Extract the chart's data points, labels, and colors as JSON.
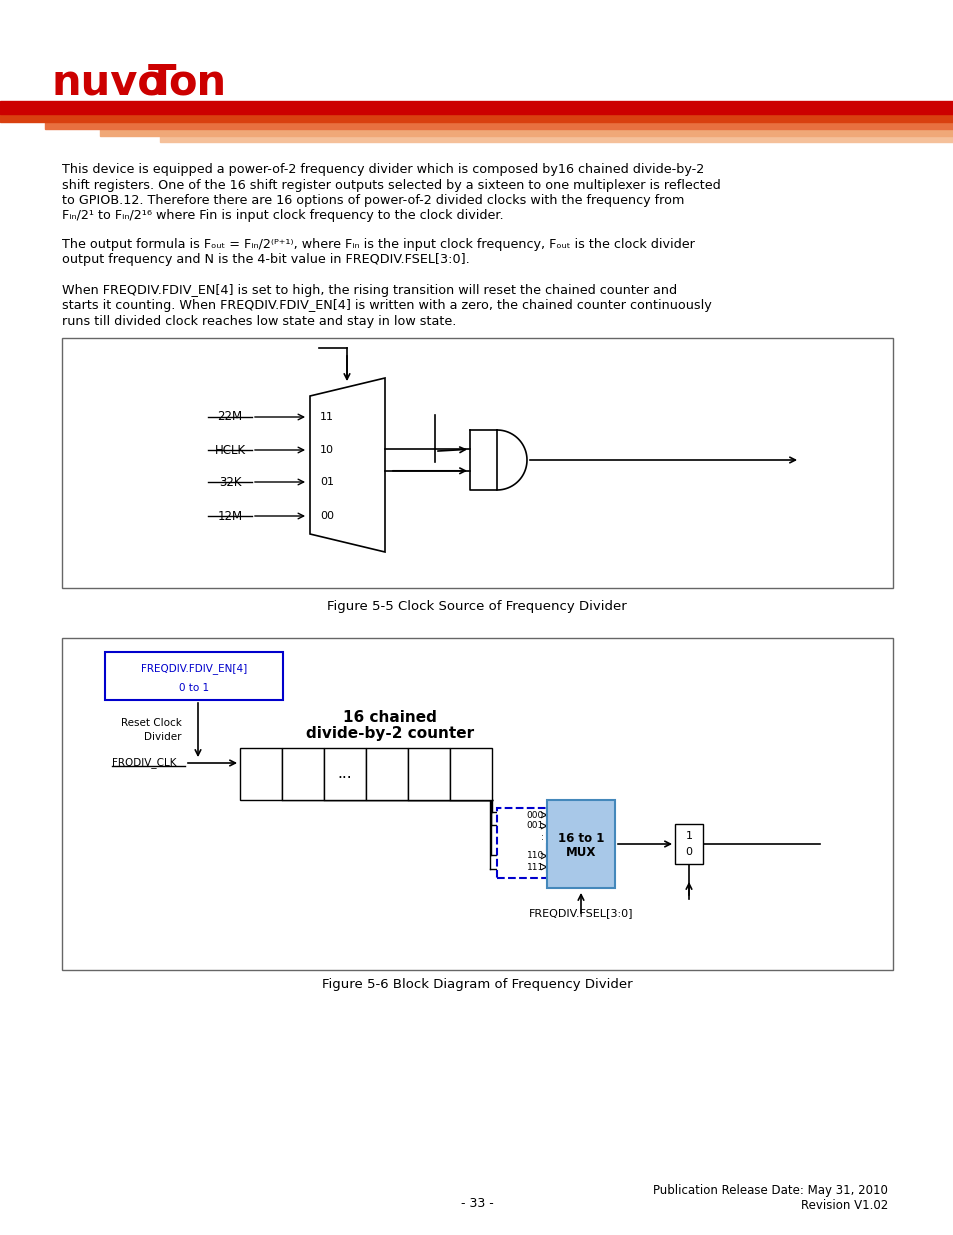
{
  "page_width": 9.54,
  "page_height": 12.35,
  "bg": "#ffffff",
  "logo_color": "#cc0000",
  "body_font": "DejaVu Sans",
  "body_fontsize": 9.0,
  "para1": [
    "This device is equipped a power-of-2 frequency divider which is composed by16 chained divide-by-2",
    "shift registers. One of the 16 shift register outputs selected by a sixteen to one multiplexer is reflected",
    "to GPIOB.12. Therefore there are 16 options of power-of-2 divided clocks with the frequency from",
    "Fin/2¹ to Fin/2¹⁶ where Fin is input clock frequency to the clock divider."
  ],
  "para2": [
    "The output formula is Fout = Fin/2(N+1), where Fin is the input clock frequency, Fout is the clock divider",
    "output frequency and N is the 4-bit value in FREQDIV.FSEL[3:0]."
  ],
  "para3": [
    "When FREQDIV.FDIV_EN[4] is set to high, the rising transition will reset the chained counter and",
    "starts it counting. When FREQDIV.FDIV_EN[4] is written with a zero, the chained counter continuously",
    "runs till divided clock reaches low state and stay in low state."
  ],
  "fig55_caption": "Figure 5-5 Clock Source of Frequency Divider",
  "fig56_caption": "Figure 5-6 Block Diagram of Frequency Divider",
  "footer_center": "- 33 -",
  "footer_date": "Publication Release Date: May 31, 2010",
  "footer_rev": "Revision V1.02",
  "blue": "#0000cc",
  "light_blue": "#a8c8e8",
  "mux_inputs": [
    "22M",
    "HCLK",
    "32K",
    "12M"
  ],
  "mux_sel": [
    "11",
    "10",
    "01",
    "00"
  ],
  "mux2_inputs": [
    "000",
    "001",
    ":",
    "110",
    "111"
  ],
  "en_line1": "FREQDIV.FDIV_EN[4]",
  "en_line2": "0 to 1",
  "reset_line1": "Reset Clock",
  "reset_line2": "Divider",
  "counter_line1": "16 chained",
  "counter_line2": "divide-by-2 counter",
  "clk_label": "FRQDIV_CLK",
  "fsel_label": "FREQDIV.FSEL[3:0]",
  "mux2_l1": "16 to 1",
  "mux2_l2": "MUX"
}
